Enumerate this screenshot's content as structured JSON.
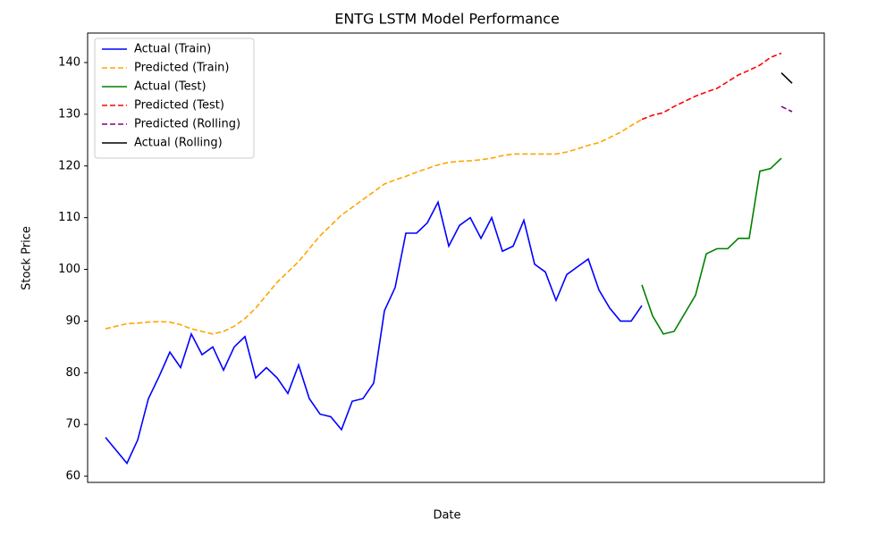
{
  "chart_data": {
    "type": "line",
    "title": "ENTG LSTM Model Performance",
    "x_label": "Date",
    "y_label": "Stock Price",
    "ylim": [
      58.8,
      145.7
    ],
    "yticks": [
      60,
      70,
      80,
      90,
      100,
      110,
      120,
      130,
      140
    ],
    "legend": "upper left",
    "series": [
      {
        "name": "Actual (Train)",
        "color": "#0000ff",
        "dashed": false,
        "values": [
          67.5,
          65,
          62.5,
          67,
          75,
          79.3,
          84,
          81,
          87.5,
          83.5,
          85,
          80.5,
          85,
          87,
          79,
          81,
          79,
          76,
          81.5,
          75,
          72,
          71.5,
          69,
          74.5,
          75,
          78,
          92,
          96.5,
          107,
          107,
          109,
          113,
          104.5,
          108.5,
          110,
          106,
          110,
          103.5,
          104.5,
          109.5,
          101,
          99.5,
          94,
          99,
          100.5,
          102,
          96,
          92.5,
          90,
          90,
          93,
          null,
          null,
          null,
          null,
          null,
          null,
          null,
          null,
          null,
          null,
          null,
          null,
          null,
          null
        ]
      },
      {
        "name": "Predicted (Train)",
        "color": "#ffa500",
        "dashed": true,
        "values": [
          88.5,
          89,
          89.5,
          89.6,
          89.8,
          89.9,
          89.8,
          89.3,
          88.5,
          88,
          87.5,
          88,
          89,
          90.5,
          92.5,
          95,
          97.5,
          99.5,
          101.5,
          104,
          106.5,
          108.5,
          110.5,
          112,
          113.5,
          115,
          116.5,
          117.3,
          118,
          118.8,
          119.5,
          120.2,
          120.7,
          120.9,
          121,
          121.2,
          121.5,
          122,
          122.3,
          122.3,
          122.3,
          122.3,
          122.3,
          122.7,
          123.3,
          124,
          124.5,
          125.5,
          126.5,
          127.8,
          129,
          null,
          null,
          null,
          null,
          null,
          null,
          null,
          null,
          null,
          null,
          null,
          null,
          null,
          null
        ]
      },
      {
        "name": "Actual (Test)",
        "color": "#008000",
        "dashed": false,
        "values": [
          null,
          null,
          null,
          null,
          null,
          null,
          null,
          null,
          null,
          null,
          null,
          null,
          null,
          null,
          null,
          null,
          null,
          null,
          null,
          null,
          null,
          null,
          null,
          null,
          null,
          null,
          null,
          null,
          null,
          null,
          null,
          null,
          null,
          null,
          null,
          null,
          null,
          null,
          null,
          null,
          null,
          null,
          null,
          null,
          null,
          null,
          null,
          null,
          null,
          null,
          97,
          91,
          87.5,
          88,
          91.5,
          95,
          103,
          104,
          104,
          106,
          106,
          119,
          119.5,
          121.5,
          null
        ]
      },
      {
        "name": "Predicted (Test)",
        "color": "#ff0000",
        "dashed": true,
        "values": [
          null,
          null,
          null,
          null,
          null,
          null,
          null,
          null,
          null,
          null,
          null,
          null,
          null,
          null,
          null,
          null,
          null,
          null,
          null,
          null,
          null,
          null,
          null,
          null,
          null,
          null,
          null,
          null,
          null,
          null,
          null,
          null,
          null,
          null,
          null,
          null,
          null,
          null,
          null,
          null,
          null,
          null,
          null,
          null,
          null,
          null,
          null,
          null,
          null,
          null,
          129,
          129.8,
          130.3,
          131.5,
          132.5,
          133.5,
          134.3,
          135,
          136.3,
          137.6,
          138.5,
          139.5,
          141,
          141.8,
          null
        ]
      },
      {
        "name": "Predicted (Rolling)",
        "color": "#800080",
        "dashed": true,
        "values": [
          null,
          null,
          null,
          null,
          null,
          null,
          null,
          null,
          null,
          null,
          null,
          null,
          null,
          null,
          null,
          null,
          null,
          null,
          null,
          null,
          null,
          null,
          null,
          null,
          null,
          null,
          null,
          null,
          null,
          null,
          null,
          null,
          null,
          null,
          null,
          null,
          null,
          null,
          null,
          null,
          null,
          null,
          null,
          null,
          null,
          null,
          null,
          null,
          null,
          null,
          null,
          null,
          null,
          null,
          null,
          null,
          null,
          null,
          null,
          null,
          null,
          null,
          null,
          131.5,
          130.5
        ]
      },
      {
        "name": "Actual (Rolling)",
        "color": "#000000",
        "dashed": false,
        "values": [
          null,
          null,
          null,
          null,
          null,
          null,
          null,
          null,
          null,
          null,
          null,
          null,
          null,
          null,
          null,
          null,
          null,
          null,
          null,
          null,
          null,
          null,
          null,
          null,
          null,
          null,
          null,
          null,
          null,
          null,
          null,
          null,
          null,
          null,
          null,
          null,
          null,
          null,
          null,
          null,
          null,
          null,
          null,
          null,
          null,
          null,
          null,
          null,
          null,
          null,
          null,
          null,
          null,
          null,
          null,
          null,
          null,
          null,
          null,
          null,
          null,
          null,
          null,
          138,
          136
        ]
      }
    ]
  }
}
